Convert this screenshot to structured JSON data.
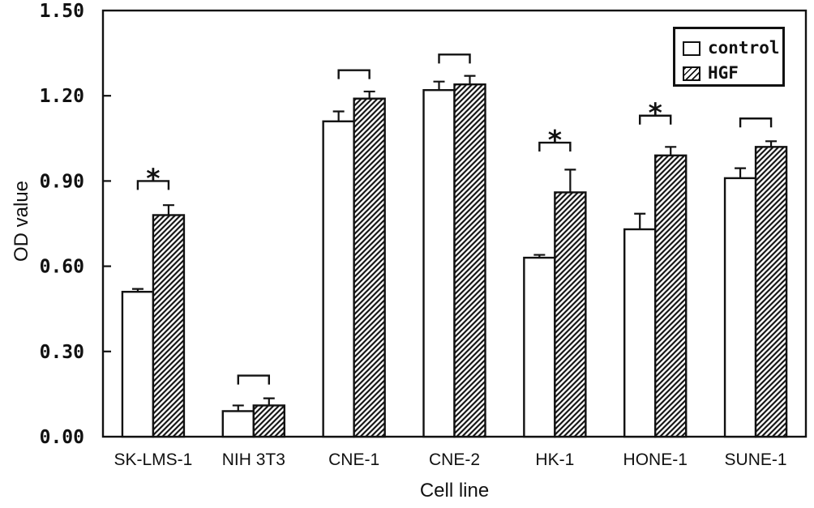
{
  "figure": {
    "background": "#ffffff",
    "ink_color": "#111111"
  },
  "chart_data": {
    "type": "bar",
    "title": "",
    "xlabel": "Cell line",
    "ylabel": "OD value",
    "ylim": [
      0,
      1.5
    ],
    "ytick_step": 0.3,
    "ytick_labels": [
      "0.00",
      "0.30",
      "0.60",
      "0.90",
      "1.20",
      "1.50"
    ],
    "grid": false,
    "legend_position": "top-right-inside",
    "error_bars": "upper-only",
    "categories": [
      "SK-LMS-1",
      "NIH 3T3",
      "CNE-1",
      "CNE-2",
      "HK-1",
      "HONE-1",
      "SUNE-1"
    ],
    "series": [
      {
        "name": "control",
        "pattern": "solid-white",
        "values": [
          0.51,
          0.09,
          1.11,
          1.22,
          0.63,
          0.73,
          0.91
        ],
        "errors": [
          0.01,
          0.02,
          0.035,
          0.03,
          0.01,
          0.055,
          0.035
        ]
      },
      {
        "name": "HGF",
        "pattern": "diagonal-hatch",
        "values": [
          0.78,
          0.11,
          1.19,
          1.24,
          0.86,
          0.99,
          1.02
        ],
        "errors": [
          0.035,
          0.025,
          0.025,
          0.03,
          0.08,
          0.03,
          0.02
        ]
      }
    ],
    "comparisons": [
      {
        "category": "SK-LMS-1",
        "bracket_top": 0.9,
        "label": "*"
      },
      {
        "category": "NIH 3T3",
        "bracket_top": 0.215,
        "label": ""
      },
      {
        "category": "CNE-1",
        "bracket_top": 1.29,
        "label": ""
      },
      {
        "category": "CNE-2",
        "bracket_top": 1.345,
        "label": ""
      },
      {
        "category": "HK-1",
        "bracket_top": 1.035,
        "label": "*"
      },
      {
        "category": "HONE-1",
        "bracket_top": 1.13,
        "label": "*"
      },
      {
        "category": "SUNE-1",
        "bracket_top": 1.12,
        "label": ""
      }
    ]
  }
}
